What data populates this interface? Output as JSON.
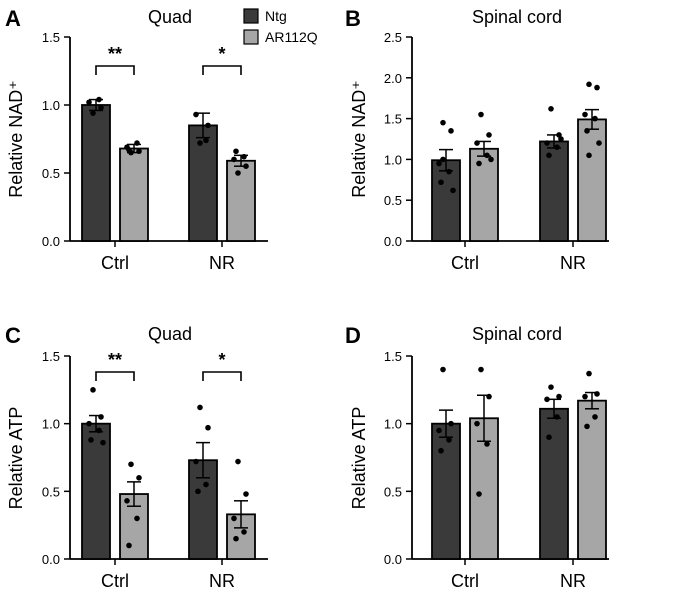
{
  "colors": {
    "ntg": "#3a3a3a",
    "ar112q": "#a6a6a6",
    "axis": "#000000"
  },
  "legend": [
    {
      "label": "Ntg",
      "color": "#3a3a3a"
    },
    {
      "label": "AR112Q",
      "color": "#a6a6a6"
    }
  ],
  "chart_data": [
    {
      "panel_label": "A",
      "type": "bar",
      "title": "Quad",
      "ylabel": "Relative NAD⁺",
      "categories": [
        "Ctrl",
        "NR"
      ],
      "ylim": [
        0,
        1.5
      ],
      "yticks": [
        0,
        0.5,
        1.0,
        1.5
      ],
      "ytick_labels": [
        "0.0",
        "0.5",
        "1.0",
        "1.5"
      ],
      "legend_placement": "top",
      "series": [
        {
          "name": "Ntg",
          "values": [
            1.0,
            0.85
          ],
          "sem": [
            0.04,
            0.09
          ],
          "points": [
            [
              0.94,
              0.98,
              1.02,
              1.04
            ],
            [
              0.72,
              0.85,
              0.93,
              0.74
            ]
          ]
        },
        {
          "name": "AR112Q",
          "values": [
            0.68,
            0.59
          ],
          "sem": [
            0.03,
            0.04
          ],
          "points": [
            [
              0.65,
              0.66,
              0.69,
              0.72,
              0.67
            ],
            [
              0.5,
              0.55,
              0.6,
              0.62,
              0.66
            ]
          ]
        }
      ],
      "significance": [
        {
          "category": "Ctrl",
          "label": "**"
        },
        {
          "category": "NR",
          "label": "*"
        }
      ]
    },
    {
      "panel_label": "B",
      "type": "bar",
      "title": "Spinal cord",
      "ylabel": "Relative NAD⁺",
      "categories": [
        "Ctrl",
        "NR"
      ],
      "ylim": [
        0,
        2.5
      ],
      "yticks": [
        0,
        0.5,
        1.0,
        1.5,
        2.0,
        2.5
      ],
      "ytick_labels": [
        "0.0",
        "0.5",
        "1.0",
        "1.5",
        "2.0",
        "2.5"
      ],
      "series": [
        {
          "name": "Ntg",
          "values": [
            0.99,
            1.22
          ],
          "sem": [
            0.13,
            0.08
          ],
          "points": [
            [
              1.45,
              1.35,
              0.95,
              0.85,
              0.72,
              0.62,
              1.0
            ],
            [
              1.62,
              1.3,
              1.2,
              1.15,
              1.05,
              1.25
            ]
          ]
        },
        {
          "name": "AR112Q",
          "values": [
            1.13,
            1.49
          ],
          "sem": [
            0.09,
            0.12
          ],
          "points": [
            [
              1.55,
              1.3,
              1.2,
              1.05,
              0.95,
              1.0
            ],
            [
              1.92,
              1.88,
              1.55,
              1.5,
              1.35,
              1.2,
              1.05
            ]
          ]
        }
      ],
      "significance": []
    },
    {
      "panel_label": "C",
      "type": "bar",
      "title": "Quad",
      "ylabel": "Relative ATP",
      "categories": [
        "Ctrl",
        "NR"
      ],
      "ylim": [
        0,
        1.5
      ],
      "yticks": [
        0,
        0.5,
        1.0,
        1.5
      ],
      "ytick_labels": [
        "0.0",
        "0.5",
        "1.0",
        "1.5"
      ],
      "series": [
        {
          "name": "Ntg",
          "values": [
            1.0,
            0.73
          ],
          "sem": [
            0.06,
            0.13
          ],
          "points": [
            [
              1.25,
              1.05,
              1.0,
              0.95,
              0.88,
              0.86
            ],
            [
              1.12,
              0.97,
              0.72,
              0.55,
              0.5
            ]
          ]
        },
        {
          "name": "AR112Q",
          "values": [
            0.48,
            0.33
          ],
          "sem": [
            0.09,
            0.1
          ],
          "points": [
            [
              0.7,
              0.6,
              0.43,
              0.3,
              0.1
            ],
            [
              0.72,
              0.48,
              0.3,
              0.2,
              0.15
            ]
          ]
        }
      ],
      "significance": [
        {
          "category": "Ctrl",
          "label": "**"
        },
        {
          "category": "NR",
          "label": "*"
        }
      ]
    },
    {
      "panel_label": "D",
      "type": "bar",
      "title": "Spinal cord",
      "ylabel": "Relative ATP",
      "categories": [
        "Ctrl",
        "NR"
      ],
      "ylim": [
        0,
        1.5
      ],
      "yticks": [
        0,
        0.5,
        1.0,
        1.5
      ],
      "ytick_labels": [
        "0.0",
        "0.5",
        "1.0",
        "1.5"
      ],
      "series": [
        {
          "name": "Ntg",
          "values": [
            1.0,
            1.11
          ],
          "sem": [
            0.1,
            0.07
          ],
          "points": [
            [
              1.4,
              1.0,
              0.95,
              0.88,
              0.8
            ],
            [
              1.27,
              1.2,
              1.18,
              1.05,
              0.9
            ]
          ]
        },
        {
          "name": "AR112Q",
          "values": [
            1.04,
            1.17
          ],
          "sem": [
            0.17,
            0.06
          ],
          "points": [
            [
              1.4,
              1.2,
              1.0,
              0.85,
              0.48
            ],
            [
              1.37,
              1.22,
              1.2,
              1.05,
              0.98
            ]
          ]
        }
      ],
      "significance": []
    }
  ]
}
